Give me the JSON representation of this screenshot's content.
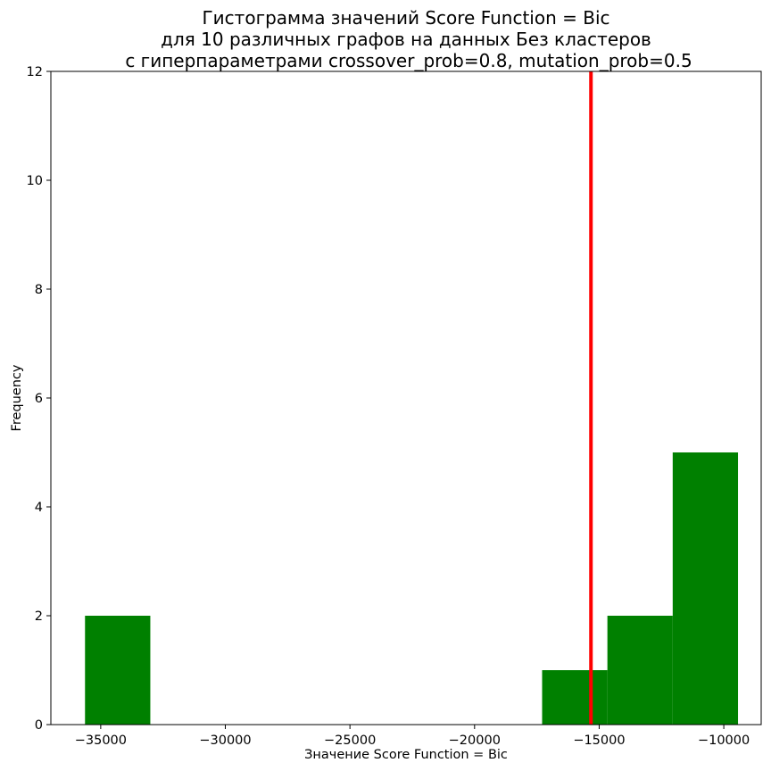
{
  "chart_data": {
    "type": "histogram",
    "title_lines": [
      "Гистограмма значений Score Function = Bic",
      "для 10 различных графов на данных Без кластеров",
      "с гиперпараметрами crossover_prob=0.8, mutation_prob=0.5"
    ],
    "xlabel": "Значение Score Function = Bic",
    "ylabel": "Frequency",
    "xlim": [
      -37000,
      -8500
    ],
    "ylim": [
      0,
      12
    ],
    "xticks": [
      -35000,
      -30000,
      -25000,
      -20000,
      -15000,
      -10000
    ],
    "xtick_labels": [
      "−35000",
      "−30000",
      "−25000",
      "−20000",
      "−15000",
      "−10000"
    ],
    "yticks": [
      0,
      2,
      4,
      6,
      8,
      10,
      12
    ],
    "ytick_labels": [
      "0",
      "2",
      "4",
      "6",
      "8",
      "10",
      "12"
    ],
    "bins": [
      {
        "x0": -35630,
        "x1": -33010,
        "count": 2
      },
      {
        "x0": -33010,
        "x1": -30390,
        "count": 0
      },
      {
        "x0": -30390,
        "x1": -27770,
        "count": 0
      },
      {
        "x0": -27770,
        "x1": -25150,
        "count": 0
      },
      {
        "x0": -25150,
        "x1": -22530,
        "count": 0
      },
      {
        "x0": -22530,
        "x1": -19910,
        "count": 0
      },
      {
        "x0": -19910,
        "x1": -17290,
        "count": 0
      },
      {
        "x0": -17290,
        "x1": -14670,
        "count": 1
      },
      {
        "x0": -14670,
        "x1": -12050,
        "count": 2
      },
      {
        "x0": -12050,
        "x1": -9430,
        "count": 5
      }
    ],
    "bar_color": "#008000",
    "reference_line": {
      "x": -15330,
      "color": "#ff0000"
    },
    "grid": false,
    "legend": "none"
  }
}
